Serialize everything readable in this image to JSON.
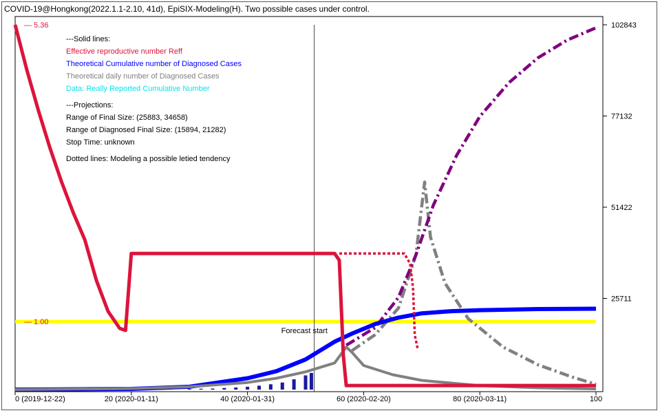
{
  "title": "COVID-19@Hongkong(2022.1.1-2.10, 41d), EpiSIX-Modeling(H). Two possible cases under control.",
  "legend": {
    "solid_header": "---Solid lines:",
    "reff_label": "Effective reproductive number Reff",
    "cum_label": "Theoretical Cumulative number of Diagnosed Cases",
    "daily_label": "Theoretical daily number of Diagnosed Cases",
    "data_label": "Data: Really Reported Cumulative Number",
    "proj_header": "---Projections:",
    "final_size": "Range of Final Size: (25883, 34658)",
    "diag_final_size": "Range of Diagnosed Final Size: (15894, 21282)",
    "stop_time": "Stop Time: unknown",
    "dotted_note": "Dotted lines: Modeling a possible letied tendency"
  },
  "colors": {
    "reff": "#dc143c",
    "cumulative": "#0000ff",
    "daily": "#808080",
    "data": "#00e5ee",
    "dotted_cumulative": "#800080",
    "threshold": "#ffff00",
    "bars": "#1a1a9e"
  },
  "chart_data": {
    "type": "line",
    "x_range": [
      0,
      100
    ],
    "x_ticks": [
      {
        "v": 0,
        "label": "0 (2019-12-22)"
      },
      {
        "v": 20,
        "label": "20 (2020-01-11)"
      },
      {
        "v": 40,
        "label": "40 (2020-01-31)"
      },
      {
        "v": 60,
        "label": "60 (2020-02-20)"
      },
      {
        "v": 80,
        "label": "80 (2020-03-11)"
      },
      {
        "v": 100,
        "label": "100"
      }
    ],
    "right_axis": {
      "range": [
        0,
        102843
      ],
      "ticks": [
        25711,
        51422,
        77132,
        102843
      ]
    },
    "left_axis_labels": [
      {
        "v": 5.36,
        "label": "— 5.36"
      },
      {
        "v": 1.0,
        "label": "— 1.00"
      }
    ],
    "reff_range": [
      0,
      5.36
    ],
    "forecast_start": {
      "x": 51.5,
      "label": "Forecast start"
    },
    "threshold": {
      "y": 1.0
    },
    "series": [
      {
        "key": "reff",
        "style": "solid",
        "points": [
          [
            0,
            5.36
          ],
          [
            2,
            4.7
          ],
          [
            4,
            4.1
          ],
          [
            6,
            3.55
          ],
          [
            8,
            3.05
          ],
          [
            10,
            2.6
          ],
          [
            12,
            2.2
          ],
          [
            14,
            1.6
          ],
          [
            16,
            1.15
          ],
          [
            18,
            0.9
          ],
          [
            19,
            0.87
          ],
          [
            20,
            2.0
          ],
          [
            20.3,
            2.0
          ],
          [
            40,
            2.0
          ],
          [
            55,
            2.0
          ],
          [
            55.8,
            1.9
          ],
          [
            56.5,
            0.5
          ],
          [
            57,
            0.06
          ],
          [
            58,
            0.06
          ],
          [
            70,
            0.06
          ],
          [
            100,
            0.06
          ]
        ]
      },
      {
        "key": "reff_dotted",
        "style": "dotted",
        "points": [
          [
            55.8,
            2.0
          ],
          [
            67,
            2.0
          ],
          [
            68,
            1.85
          ],
          [
            68.5,
            1.5
          ],
          [
            68.8,
            0.8
          ],
          [
            69.3,
            0.6
          ]
        ]
      },
      {
        "key": "cumulative",
        "style": "solid",
        "points": [
          [
            0,
            0
          ],
          [
            20,
            200
          ],
          [
            30,
            800
          ],
          [
            40,
            3200
          ],
          [
            45,
            5200
          ],
          [
            50,
            8500
          ],
          [
            55,
            13500
          ],
          [
            58,
            15800
          ],
          [
            62,
            18500
          ],
          [
            66,
            20300
          ],
          [
            70,
            21500
          ],
          [
            75,
            22100
          ],
          [
            80,
            22400
          ],
          [
            90,
            22700
          ],
          [
            100,
            22800
          ]
        ]
      },
      {
        "key": "cumulative_dotted",
        "style": "dashdot",
        "points": [
          [
            57,
            12500
          ],
          [
            62,
            17500
          ],
          [
            66,
            26000
          ],
          [
            69,
            38000
          ],
          [
            72,
            52000
          ],
          [
            76,
            66000
          ],
          [
            80,
            77000
          ],
          [
            85,
            86500
          ],
          [
            90,
            93500
          ],
          [
            95,
            98500
          ],
          [
            100,
            102000
          ]
        ]
      },
      {
        "key": "daily",
        "style": "solid",
        "points": [
          [
            0,
            0
          ],
          [
            20,
            300
          ],
          [
            30,
            800
          ],
          [
            40,
            2000
          ],
          [
            45,
            3200
          ],
          [
            50,
            5000
          ],
          [
            55,
            7500
          ],
          [
            57,
            12000
          ],
          [
            58,
            10500
          ],
          [
            60,
            6800
          ],
          [
            65,
            4200
          ],
          [
            70,
            2600
          ],
          [
            80,
            1100
          ],
          [
            90,
            500
          ],
          [
            100,
            200
          ]
        ]
      },
      {
        "key": "daily_dotted",
        "style": "dashdot",
        "points": [
          [
            58,
            11000
          ],
          [
            62,
            15500
          ],
          [
            66,
            23000
          ],
          [
            69,
            38000
          ],
          [
            70.5,
            58500
          ],
          [
            71.5,
            43000
          ],
          [
            74,
            30000
          ],
          [
            78,
            20000
          ],
          [
            84,
            12000
          ],
          [
            90,
            7000
          ],
          [
            96,
            3500
          ],
          [
            100,
            1500
          ]
        ]
      }
    ],
    "bars": [
      [
        30,
        200
      ],
      [
        32,
        250
      ],
      [
        34,
        300
      ],
      [
        36,
        450
      ],
      [
        38,
        600
      ],
      [
        40,
        800
      ],
      [
        42,
        1100
      ],
      [
        44,
        1500
      ],
      [
        46,
        2000
      ],
      [
        48,
        2900
      ],
      [
        50,
        4000
      ],
      [
        51,
        4700
      ]
    ]
  }
}
